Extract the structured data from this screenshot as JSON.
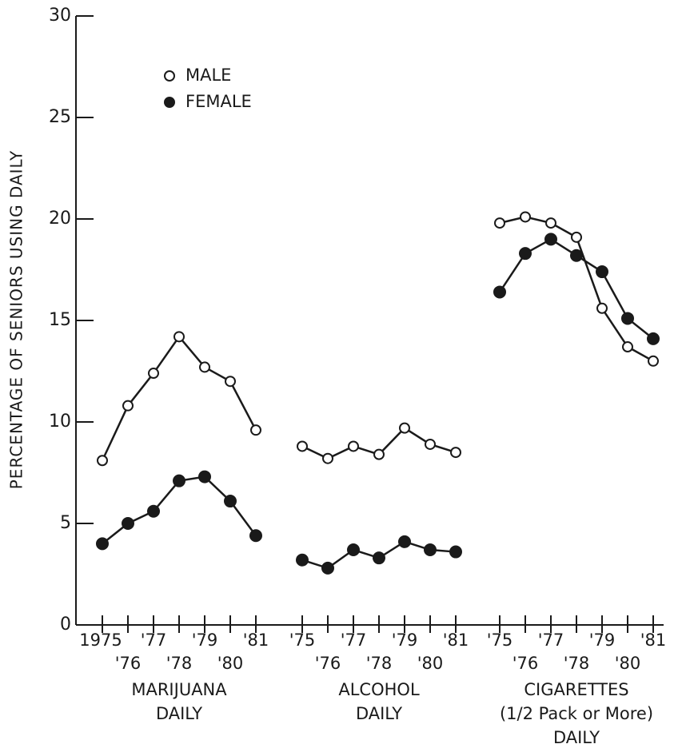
{
  "chart_data": {
    "type": "line",
    "ylabel": "PERCENTAGE OF SENIORS USING DAILY",
    "ylim": [
      0,
      30
    ],
    "yticks": [
      0,
      5,
      10,
      15,
      20,
      25,
      30
    ],
    "color": "#1a1a1a",
    "series": [
      {
        "name": "MALE",
        "marker": "open"
      },
      {
        "name": "FEMALE",
        "marker": "filled"
      }
    ],
    "groups": [
      {
        "label": [
          "MARIJUANA",
          "DAILY"
        ],
        "categories": [
          "1975",
          "'76",
          "'77",
          "'78",
          "'79",
          "'80",
          "'81"
        ],
        "values": [
          [
            8.1,
            10.8,
            12.4,
            14.2,
            12.7,
            12.0,
            9.6
          ],
          [
            4.0,
            5.0,
            5.6,
            7.1,
            7.3,
            6.1,
            4.4
          ]
        ]
      },
      {
        "label": [
          "ALCOHOL",
          "DAILY"
        ],
        "categories": [
          "'75",
          "'76",
          "'77",
          "'78",
          "'79",
          "'80",
          "'81"
        ],
        "values": [
          [
            8.8,
            8.2,
            8.8,
            8.4,
            9.7,
            8.9,
            8.5
          ],
          [
            3.2,
            2.8,
            3.7,
            3.3,
            4.1,
            3.7,
            3.6
          ]
        ]
      },
      {
        "label": [
          "CIGARETTES",
          "(1/2 Pack or More)",
          "DAILY"
        ],
        "categories": [
          "'75",
          "'76",
          "'77",
          "'78",
          "'79",
          "'80",
          "'81"
        ],
        "values": [
          [
            19.8,
            20.1,
            19.8,
            19.1,
            15.6,
            13.7,
            13.0
          ],
          [
            16.4,
            18.3,
            19.0,
            18.2,
            17.4,
            15.1,
            14.1
          ]
        ]
      }
    ]
  }
}
